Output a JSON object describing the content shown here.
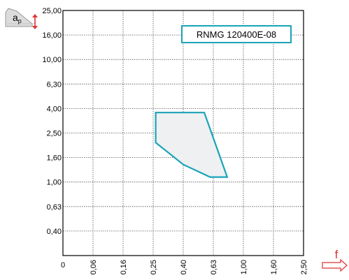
{
  "colors": {
    "accent": "#1aa3b8",
    "region_fill": "#eef0f1",
    "axis": "#000000",
    "grid": "#555555",
    "icon_fill": "#dcdcdc"
  },
  "icons": {
    "depth_of_cut": "insert-depth-of-cut-icon",
    "feed_arrow": "right-arrow-icon"
  },
  "chart_data": {
    "type": "area",
    "title": "RNMG 120400E-08",
    "ylabel": "aₚ",
    "xlabel": "f",
    "x_scale": "log",
    "y_scale": "log",
    "x_ticks": [
      "0",
      "0,06",
      "0,16",
      "0,25",
      "0,40",
      "0,63",
      "1,00",
      "1,60",
      "2,50"
    ],
    "y_ticks": [
      "0",
      "0,40",
      "0,63",
      "1,00",
      "1,60",
      "2,50",
      "4,00",
      "6,30",
      "10,00",
      "16,00",
      "25,00"
    ],
    "x_tick_values": [
      0,
      0.06,
      0.16,
      0.25,
      0.4,
      0.63,
      1.0,
      1.6,
      2.5
    ],
    "y_tick_values": [
      0,
      0.4,
      0.63,
      1.0,
      1.6,
      2.5,
      4.0,
      6.3,
      10.0,
      16.0,
      25.0
    ],
    "grid": true,
    "region": [
      {
        "f": 0.26,
        "ap": 3.7
      },
      {
        "f": 0.55,
        "ap": 3.7
      },
      {
        "f": 0.78,
        "ap": 1.1
      },
      {
        "f": 0.6,
        "ap": 1.1
      },
      {
        "f": 0.4,
        "ap": 1.4
      },
      {
        "f": 0.26,
        "ap": 2.1
      }
    ]
  }
}
